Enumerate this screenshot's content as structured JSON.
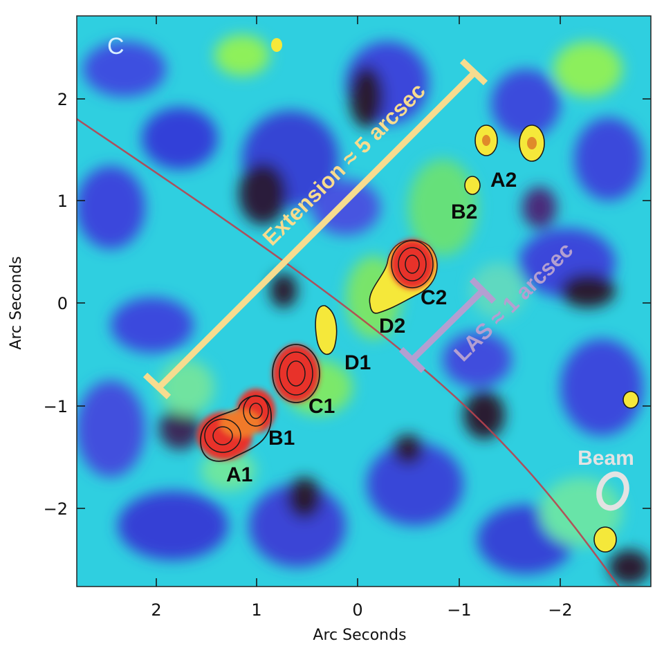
{
  "panel_letter": "C",
  "axes": {
    "xlabel": "Arc Seconds",
    "ylabel": "Arc Seconds",
    "x_ticks": [
      "2",
      "1",
      "0",
      "−1",
      "−2"
    ],
    "y_ticks": [
      "2",
      "1",
      "0",
      "−1",
      "−2"
    ]
  },
  "components": [
    {
      "label": "A1",
      "x": 1.3,
      "y": -1.3
    },
    {
      "label": "B1",
      "x": 1.0,
      "y": -1.05
    },
    {
      "label": "C1",
      "x": 0.63,
      "y": -0.68
    },
    {
      "label": "D1",
      "x": 0.33,
      "y": -0.35
    },
    {
      "label": "D2",
      "x": -0.45,
      "y": 0.3
    },
    {
      "label": "C2",
      "x": -0.45,
      "y": 0.3
    },
    {
      "label": "B2",
      "x": -0.92,
      "y": 1.15
    },
    {
      "label": "A2",
      "x": -1.25,
      "y": 1.6
    }
  ],
  "annotations": {
    "extension": "Extension ≈ 5 arcsec",
    "las": "LAS ≈ 1 arcsec",
    "beam": "Beam"
  },
  "colors": {
    "extension_bar": "#f7dc8f",
    "las_bar": "#b39fd1",
    "beam": "#e3e3e3",
    "critical_curve": "#b8434f"
  }
}
